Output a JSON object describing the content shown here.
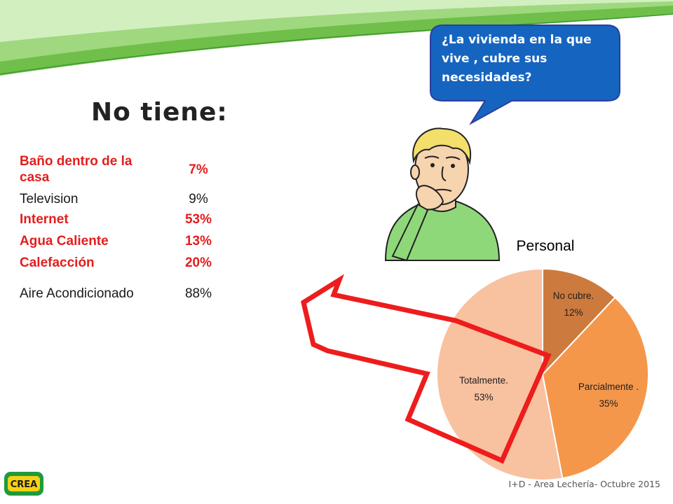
{
  "slide": {
    "heading": "No tiene:",
    "question": "¿La vivienda en la que vive , cubre sus necesidades?",
    "footer": "I+D - Area Lechería- Octubre 2015",
    "logo_text": "CREA",
    "accent_red": "#e31e1e",
    "bubble_color": "#1565c0"
  },
  "items": [
    {
      "label": "Baño dentro de la casa",
      "value": "7%",
      "highlighted": true
    },
    {
      "label": "Television",
      "value": "9%",
      "highlighted": false
    },
    {
      "label": "Internet",
      "value": "53%",
      "highlighted": true
    },
    {
      "label": "Agua Caliente",
      "value": "13%",
      "highlighted": true
    },
    {
      "label": "Calefacción",
      "value": "20%",
      "highlighted": true
    },
    {
      "label": "Aire Acondicionado",
      "value": "88%",
      "highlighted": false
    }
  ],
  "chart_data": {
    "type": "pie",
    "title": "Personal",
    "slices": [
      {
        "label": "No cubre.",
        "value": 12,
        "value_label": "12%",
        "color": "#cc7a3d"
      },
      {
        "label": "Parcialmente .",
        "value": 35,
        "value_label": "35%",
        "color": "#f4974b"
      },
      {
        "label": "Totalmente.",
        "value": 53,
        "value_label": "53%",
        "color": "#f8c1a0"
      }
    ]
  }
}
